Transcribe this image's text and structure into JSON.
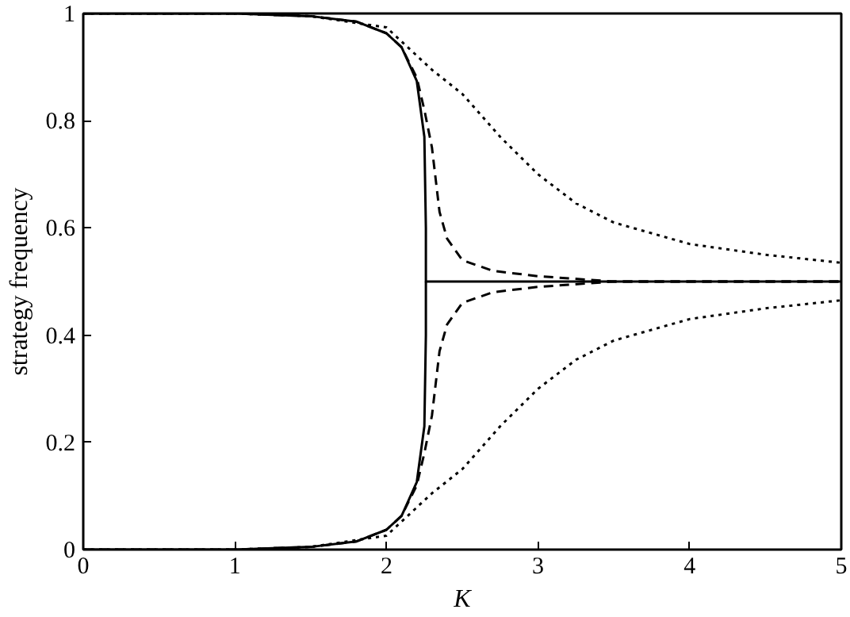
{
  "chart_data": {
    "type": "line",
    "xlabel": "K",
    "ylabel": "strategy frequency",
    "xlim": [
      0,
      5
    ],
    "ylim": [
      0,
      1
    ],
    "xticks": [
      0,
      1,
      2,
      3,
      4,
      5
    ],
    "yticks": [
      0,
      0.2,
      0.4,
      0.6,
      0.8,
      1
    ],
    "grid": false,
    "marker": "none",
    "series": [
      {
        "color": "#000000",
        "line_style": "solid",
        "x": [
          0,
          1,
          1.5,
          1.8,
          2.0,
          2.1,
          2.2,
          2.25,
          2.26,
          2.26,
          3,
          4,
          5
        ],
        "values": [
          1,
          1,
          0.995,
          0.985,
          0.963,
          0.937,
          0.874,
          0.77,
          0.6,
          0.5,
          0.5,
          0.5,
          0.5
        ]
      },
      {
        "color": "#000000",
        "line_style": "solid",
        "x": [
          0,
          1,
          1.5,
          1.8,
          2.0,
          2.1,
          2.2,
          2.25,
          2.26,
          2.26
        ],
        "values": [
          0,
          0,
          0.005,
          0.015,
          0.037,
          0.063,
          0.126,
          0.23,
          0.4,
          0.5
        ]
      },
      {
        "color": "#000000",
        "line_style": "dashed",
        "x": [
          0,
          1,
          1.5,
          1.8,
          2.0,
          2.1,
          2.2,
          2.25,
          2.3,
          2.35,
          2.4,
          2.5,
          2.7,
          3,
          3.5,
          4,
          5
        ],
        "values": [
          1,
          1,
          0.995,
          0.985,
          0.963,
          0.937,
          0.88,
          0.82,
          0.75,
          0.63,
          0.58,
          0.54,
          0.52,
          0.51,
          0.5,
          0.5,
          0.5
        ]
      },
      {
        "color": "#000000",
        "line_style": "dashed",
        "x": [
          0,
          1,
          1.5,
          1.8,
          2.0,
          2.1,
          2.2,
          2.25,
          2.3,
          2.35,
          2.4,
          2.5,
          2.7,
          3,
          3.5,
          4,
          5
        ],
        "values": [
          0,
          0,
          0.005,
          0.015,
          0.037,
          0.063,
          0.12,
          0.18,
          0.25,
          0.37,
          0.42,
          0.46,
          0.48,
          0.49,
          0.5,
          0.5,
          0.5
        ]
      },
      {
        "color": "#000000",
        "line_style": "dotted",
        "x": [
          0,
          1,
          1.5,
          2.0,
          2.3,
          2.5,
          2.75,
          3,
          3.25,
          3.5,
          4,
          4.5,
          5
        ],
        "values": [
          1,
          1,
          0.995,
          0.974,
          0.895,
          0.85,
          0.77,
          0.7,
          0.646,
          0.61,
          0.57,
          0.55,
          0.535
        ]
      },
      {
        "color": "#000000",
        "line_style": "dotted",
        "x": [
          0,
          1,
          1.5,
          2.0,
          2.3,
          2.5,
          2.75,
          3,
          3.25,
          3.5,
          4,
          4.5,
          5
        ],
        "values": [
          0,
          0,
          0.005,
          0.026,
          0.105,
          0.15,
          0.23,
          0.3,
          0.354,
          0.39,
          0.43,
          0.45,
          0.465
        ]
      }
    ]
  }
}
